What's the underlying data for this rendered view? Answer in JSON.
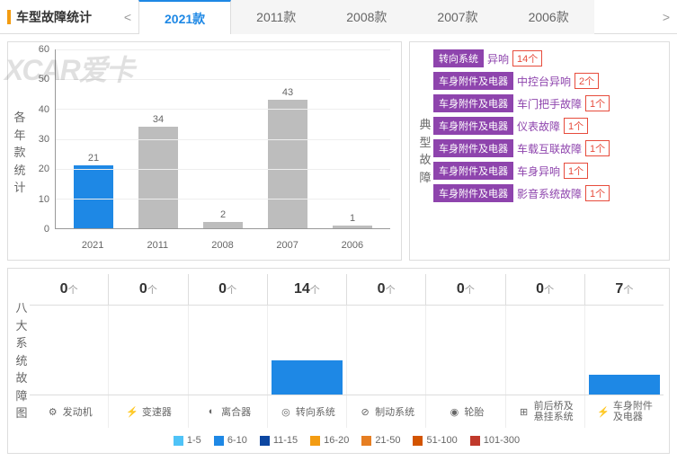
{
  "title": "车型故障统计",
  "tabs": [
    "2021款",
    "2011款",
    "2008款",
    "2007款",
    "2006款"
  ],
  "active_tab": 0,
  "watermark": "XCAR爱卡",
  "chart": {
    "vlabel": "各年款统计",
    "type": "bar",
    "ylim": [
      0,
      60
    ],
    "ytick_step": 10,
    "categories": [
      "2021",
      "2011",
      "2008",
      "2007",
      "2006"
    ],
    "values": [
      21,
      34,
      2,
      43,
      1
    ],
    "bar_colors": [
      "#1e88e5",
      "#bdbdbd",
      "#bdbdbd",
      "#bdbdbd",
      "#bdbdbd"
    ],
    "grid_color": "#eeeeee",
    "axis_color": "#999999"
  },
  "faults": {
    "vlabel": "典型故障",
    "badge_color": "#8e44ad",
    "count_border": "#e74c3c",
    "items": [
      {
        "cat": "转向系统",
        "name": "异响",
        "count": "14个"
      },
      {
        "cat": "车身附件及电器",
        "name": "中控台异响",
        "count": "2个"
      },
      {
        "cat": "车身附件及电器",
        "name": "车门把手故障",
        "count": "1个"
      },
      {
        "cat": "车身附件及电器",
        "name": "仪表故障",
        "count": "1个"
      },
      {
        "cat": "车身附件及电器",
        "name": "车载互联故障",
        "count": "1个"
      },
      {
        "cat": "车身附件及电器",
        "name": "车身异响",
        "count": "1个"
      },
      {
        "cat": "车身附件及电器",
        "name": "影音系统故障",
        "count": "1个"
      }
    ]
  },
  "systems": {
    "vlabel": "八大系统故障图",
    "unit": "个",
    "cols": [
      {
        "count": 0,
        "name": "发动机",
        "icon": "⚙",
        "bar": 0,
        "color": "#1e88e5"
      },
      {
        "count": 0,
        "name": "变速器",
        "icon": "⚡",
        "bar": 0,
        "color": "#1e88e5"
      },
      {
        "count": 0,
        "name": "离合器",
        "icon": "◐",
        "bar": 0,
        "color": "#1e88e5"
      },
      {
        "count": 14,
        "name": "转向系统",
        "icon": "◎",
        "bar": 38,
        "color": "#1e88e5"
      },
      {
        "count": 0,
        "name": "制动系统",
        "icon": "⊘",
        "bar": 0,
        "color": "#1e88e5"
      },
      {
        "count": 0,
        "name": "轮胎",
        "icon": "◉",
        "bar": 0,
        "color": "#1e88e5"
      },
      {
        "count": 0,
        "name": "前后桥及悬挂系统",
        "name2": "前后桥及\n悬挂系统",
        "icon": "⊞",
        "bar": 0,
        "color": "#1e88e5"
      },
      {
        "count": 7,
        "name": "车身附件及电器",
        "name2": "车身附件\n及电器",
        "icon": "⚡",
        "bar": 22,
        "color": "#1e88e5"
      }
    ]
  },
  "legend": {
    "items": [
      {
        "label": "1-5",
        "color": "#4fc3f7"
      },
      {
        "label": "6-10",
        "color": "#1e88e5"
      },
      {
        "label": "11-15",
        "color": "#0d47a1"
      },
      {
        "label": "16-20",
        "color": "#f39c12"
      },
      {
        "label": "21-50",
        "color": "#e67e22"
      },
      {
        "label": "51-100",
        "color": "#d35400"
      },
      {
        "label": "101-300",
        "color": "#c0392b"
      }
    ]
  }
}
